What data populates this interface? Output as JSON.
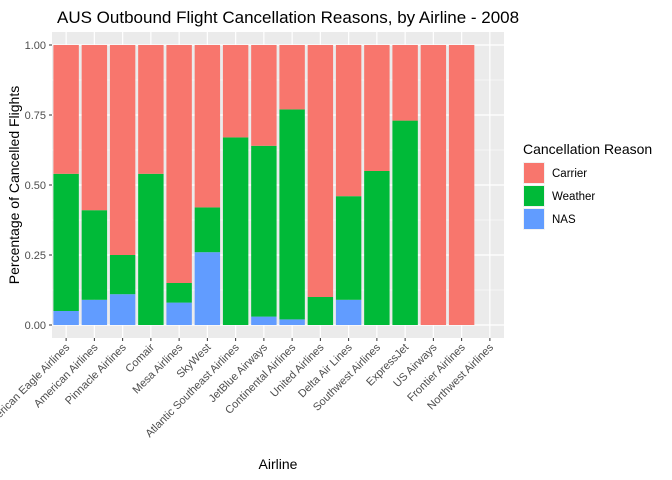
{
  "chart_data": {
    "type": "bar",
    "stacked": true,
    "title": "AUS Outbound Flight Cancellation Reasons, by Airline - 2008",
    "xlabel": "Airline",
    "ylabel": "Percentage of Cancelled Flights",
    "ylim": [
      0,
      1
    ],
    "yticks": [
      "0.00",
      "0.25",
      "0.50",
      "0.75",
      "1.00"
    ],
    "grid": true,
    "legend_position": "right",
    "legend_title": "Cancellation Reason",
    "categories": [
      "American Eagle Airlines",
      "American Airlines",
      "Pinnacle Airlines",
      "Comair",
      "Mesa Airlines",
      "SkyWest",
      "Atlantic Southeast Airlines",
      "JetBlue Airways",
      "Continental Airlines",
      "United Airlines",
      "Delta Air Lines",
      "Southwest Airlines",
      "ExpressJet",
      "US Airways",
      "Frontier Airlines",
      "Northwest Airlines"
    ],
    "series": [
      {
        "name": "Carrier",
        "color": "#F8766D",
        "values": [
          0.46,
          0.59,
          0.75,
          0.46,
          0.85,
          0.58,
          0.33,
          0.36,
          0.23,
          0.9,
          0.54,
          0.45,
          0.27,
          1.0,
          1.0,
          0
        ]
      },
      {
        "name": "Weather",
        "color": "#00BA38",
        "values": [
          0.49,
          0.32,
          0.14,
          0.54,
          0.07,
          0.16,
          0.67,
          0.61,
          0.75,
          0.1,
          0.37,
          0.55,
          0.73,
          0,
          0,
          0
        ]
      },
      {
        "name": "NAS",
        "color": "#619CFF",
        "values": [
          0.05,
          0.09,
          0.11,
          0,
          0.08,
          0.26,
          0,
          0.03,
          0.02,
          0,
          0.09,
          0,
          0,
          0,
          0,
          0
        ]
      }
    ]
  }
}
